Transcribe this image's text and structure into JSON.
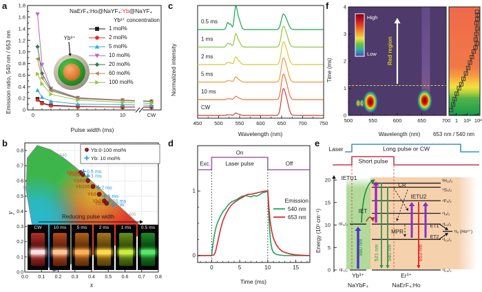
{
  "panels": {
    "a": {
      "label": "a",
      "title_pre": "NaErF₄:Ho@NaYF₄:",
      "title_accent": "Yb",
      "title_post": "@NaYF₄",
      "accent_color": "#e8312a",
      "ylabel": "Emission ratio, 540 nm / 653 nm",
      "xlabel": "Pulse width (ms)",
      "legend_title": "Yb³⁺ concentration",
      "inset_label": "Yb³⁺"
    },
    "b": {
      "label": "b",
      "xlabel": "x",
      "ylabel": "y",
      "arrow_text": "Reducing pulse width"
    },
    "c": {
      "label": "c",
      "ylabel": "Normalized intensity",
      "xlabel": "Wavelength (nm)"
    },
    "d": {
      "label": "d",
      "xlabel": "Time (ms)",
      "pulse_labels": {
        "exc": "Exc.",
        "on": "On",
        "pulse": "Laser pulse",
        "off": "Off"
      },
      "legend_title": "Emission",
      "pulse_color": "#9e5fb0"
    },
    "e": {
      "label": "e",
      "laser_label": "Laser",
      "pulse_long": {
        "text": "Long pulse or CW",
        "color": "#3f8fc4"
      },
      "pulse_short": {
        "text": "Short pulse",
        "color": "#c23a50"
      },
      "ylabel": "Energy (10³ cm⁻¹)",
      "yticks": [
        0,
        5,
        10,
        15,
        20
      ],
      "yb": {
        "ion": "Yb³⁺",
        "host": "NaYbF₄",
        "levels": [
          {
            "term": "²F₇/₂",
            "E": 0
          },
          {
            "term": "²F₅/₂",
            "E": 10.2
          }
        ]
      },
      "er": {
        "ion": "Er³⁺",
        "host": "NaErF₄:Ho",
        "levels": [
          {
            "term": "⁴I₁₅/₂",
            "E": 0
          },
          {
            "term": "⁴I₁₃/₂",
            "E": 6.8
          },
          {
            "term": "⁴I₁₁/₂",
            "E": 10.2
          },
          {
            "term": "⁴I₉/₂",
            "E": 12.6
          },
          {
            "term": "⁴F₉/₂",
            "E": 15.4
          },
          {
            "term": "⁴S₃/₂",
            "E": 18.4
          },
          {
            "term": "²H₁₁/₂",
            "E": 19.3
          }
        ]
      },
      "ho": {
        "term": "⁵I₆ (Ho³⁺)",
        "E": 8.6
      },
      "processes": {
        "ietu1": "IETU1",
        "iet": "IET",
        "cr": "CR",
        "ietu2": "IETU2",
        "mpr": "MPR",
        "et1": "ET1",
        "et2": "ET2"
      },
      "photons": [
        {
          "text": "980 nm",
          "color": "#2e8b2e"
        },
        {
          "text": "521 nm",
          "color": "#1fa04a"
        },
        {
          "text": "540 nm",
          "color": "#1fa04a"
        },
        {
          "text": "653 nm",
          "color": "#e02020"
        }
      ]
    },
    "f": {
      "label": "f",
      "ylabel": "Time (ms)",
      "xlabel_left": "Wavelength (nm)",
      "xlabel_right": "653 nm / 540 nm",
      "colorbar_high": "High",
      "colorbar_low": "Low",
      "annotation": "Red region",
      "bg_color": "#4e3a6b"
    }
  },
  "chart_data": [
    {
      "panel": "a",
      "type": "line",
      "title": "NaErF₄:Ho@NaYF₄:Yb@NaYF₄",
      "xlabel": "Pulse width (ms)",
      "ylabel": "Emission ratio, 540 nm / 653 nm",
      "x_categories": [
        0.5,
        1,
        2,
        5,
        10,
        "CW"
      ],
      "xticks": [
        0,
        5,
        10
      ],
      "cw_tick": "CW",
      "ylim": [
        0,
        1.8
      ],
      "ytick_step": 0.2,
      "series": [
        {
          "name": "1 mol%",
          "color": "#1a1a1a",
          "marker": "square",
          "values": [
            0.19,
            0.12,
            0.08,
            0.06,
            0.05,
            0.05
          ]
        },
        {
          "name": "2 mol%",
          "color": "#e0312a",
          "marker": "circle",
          "values": [
            0.17,
            0.11,
            0.07,
            0.055,
            0.05,
            0.045
          ]
        },
        {
          "name": "5 mol%",
          "color": "#2fa8e0",
          "marker": "triangle-up",
          "values": [
            0.34,
            0.22,
            0.15,
            0.1,
            0.09,
            0.08
          ]
        },
        {
          "name": "10 mol%",
          "color": "#b765bd",
          "marker": "triangle-down",
          "values": [
            1.65,
            0.78,
            0.37,
            0.21,
            0.17,
            0.15
          ]
        },
        {
          "name": "20 mol%",
          "color": "#2e7d3e",
          "marker": "diamond",
          "values": [
            1.09,
            0.63,
            0.35,
            0.2,
            0.165,
            0.15
          ]
        },
        {
          "name": "60 mol%",
          "color": "#b5895a",
          "marker": "triangle-left",
          "values": [
            0.88,
            0.55,
            0.33,
            0.195,
            0.16,
            0.14
          ]
        },
        {
          "name": "100 mol%",
          "color": "#95c23e",
          "marker": "triangle-right",
          "values": [
            0.62,
            0.45,
            0.27,
            0.17,
            0.13,
            0.11
          ]
        }
      ]
    },
    {
      "panel": "b",
      "type": "scatter",
      "xlabel": "x",
      "ylabel": "y",
      "xlim": [
        0,
        0.8
      ],
      "ylim": [
        0,
        0.85
      ],
      "tick_step": 0.1,
      "locus_labels": [
        {
          "text": "500",
          "x": 0.01,
          "y": 0.545
        },
        {
          "text": "540",
          "x": 0.23,
          "y": 0.76
        },
        {
          "text": "600",
          "x": 0.645,
          "y": 0.37
        }
      ],
      "series": [
        {
          "name": "Yb:0-100 mol%",
          "color": "#8b1a1a",
          "marker": "circle",
          "label_color": "#c2571c",
          "points": [
            {
              "label": "Yb10",
              "x": 0.335,
              "y": 0.655
            },
            {
              "label": "Yb20",
              "x": 0.348,
              "y": 0.642
            },
            {
              "label": "Yb60",
              "x": 0.378,
              "y": 0.602
            },
            {
              "label": "Yb100",
              "x": 0.408,
              "y": 0.563
            },
            {
              "label": "Yb5",
              "x": 0.446,
              "y": 0.512
            },
            {
              "label": "Yb2",
              "x": 0.476,
              "y": 0.468
            },
            {
              "label": "Yb1",
              "x": 0.49,
              "y": 0.452
            }
          ]
        },
        {
          "name": "Yb: 10 mol%",
          "color": "#2f96d8",
          "marker": "plus",
          "label_color": "#2f96d8",
          "points": [
            {
              "label": "0.5 ms",
              "x": 0.352,
              "y": 0.662
            },
            {
              "label": "1 ms",
              "x": 0.378,
              "y": 0.632
            },
            {
              "label": "2 ms",
              "x": 0.44,
              "y": 0.556
            },
            {
              "label": "5 ms",
              "x": 0.478,
              "y": 0.5
            },
            {
              "label": "10 ms",
              "x": 0.508,
              "y": 0.468
            },
            {
              "label": "CW",
              "x": 0.528,
              "y": 0.443
            }
          ]
        }
      ],
      "arrow_text": "Reducing pulse width",
      "photos": [
        {
          "label": "CW",
          "body": "#b03028",
          "deep": "#5a0d0d",
          "band": "#ffe2e2"
        },
        {
          "label": "10 ms",
          "body": "#b44a20",
          "deep": "#5c1d06",
          "band": "#ffc898"
        },
        {
          "label": "5 ms",
          "body": "#b06018",
          "deep": "#5a2c06",
          "band": "#ffb058"
        },
        {
          "label": "2 ms",
          "body": "#a87818",
          "deep": "#523a06",
          "band": "#ffd850"
        },
        {
          "label": "1 ms",
          "body": "#6a9018",
          "deep": "#2e4606",
          "band": "#c8ee40"
        },
        {
          "label": "0.5 ms",
          "body": "#1f8a28",
          "deep": "#07400e",
          "band": "#55e868"
        }
      ]
    },
    {
      "panel": "c",
      "type": "line-stack",
      "xlabel": "Wavelength (nm)",
      "ylabel": "Normalized intensity",
      "xlim": [
        450,
        750
      ],
      "xticks": [
        450,
        500,
        550,
        600,
        650,
        700,
        750
      ],
      "green_peaks": [
        [
          521.5,
          2.8,
          0.33
        ],
        [
          528.5,
          2.8,
          0.25
        ],
        [
          540.5,
          3.2,
          1.0
        ],
        [
          547.5,
          4.5,
          0.52
        ]
      ],
      "red_peaks": [
        [
          653,
          4.5,
          1.0
        ],
        [
          661,
          5.5,
          0.72
        ]
      ],
      "series": [
        {
          "name": "0.5 ms",
          "color": "#18a24f",
          "green": 1.0,
          "red": 0.58
        },
        {
          "name": "1 ms",
          "color": "#8cc63f",
          "green": 0.56,
          "red": 0.78
        },
        {
          "name": "2 ms",
          "color": "#d8c838",
          "green": 0.32,
          "red": 0.85
        },
        {
          "name": "5 ms",
          "color": "#f09a3c",
          "green": 0.22,
          "red": 0.9
        },
        {
          "name": "10 ms",
          "color": "#ee7030",
          "green": 0.14,
          "red": 0.95
        },
        {
          "name": "CW",
          "color": "#d43a32",
          "green": 0.1,
          "red": 1.0
        }
      ]
    },
    {
      "panel": "d",
      "type": "line",
      "xlabel": "Time (ms)",
      "xlim": [
        -2.5,
        17.5
      ],
      "xticks": [
        0,
        5,
        10,
        15
      ],
      "yticks": [
        0,
        1
      ],
      "pulse_on_start": 0,
      "pulse_on_end": 10,
      "series": [
        {
          "name": "540 nm",
          "color": "#17a45c",
          "points": [
            [
              -2.5,
              0
            ],
            [
              -1,
              0
            ],
            [
              0,
              0
            ],
            [
              0.15,
              0.12
            ],
            [
              0.3,
              0.22
            ],
            [
              0.5,
              0.33
            ],
            [
              0.75,
              0.43
            ],
            [
              1,
              0.5
            ],
            [
              1.5,
              0.6
            ],
            [
              2,
              0.68
            ],
            [
              2.5,
              0.73
            ],
            [
              3,
              0.79
            ],
            [
              3.5,
              0.83
            ],
            [
              4,
              0.85
            ],
            [
              4.5,
              0.87
            ],
            [
              5,
              0.9
            ],
            [
              5.5,
              0.92
            ],
            [
              6,
              0.93
            ],
            [
              6.5,
              0.92
            ],
            [
              7,
              0.91
            ],
            [
              7.5,
              0.93
            ],
            [
              8,
              0.92
            ],
            [
              8.5,
              0.94
            ],
            [
              9,
              0.97
            ],
            [
              9.5,
              0.98
            ],
            [
              10,
              1
            ],
            [
              10.15,
              0.7
            ],
            [
              10.3,
              0.45
            ],
            [
              10.5,
              0.22
            ],
            [
              10.75,
              0.1
            ],
            [
              11,
              0.05
            ],
            [
              11.5,
              0.02
            ],
            [
              12,
              0.01
            ],
            [
              13,
              0
            ],
            [
              17.5,
              0
            ]
          ]
        },
        {
          "name": "653 nm",
          "color": "#d8262c",
          "points": [
            [
              -2.5,
              0
            ],
            [
              0,
              0
            ],
            [
              0.4,
              0.01
            ],
            [
              0.6,
              0.04
            ],
            [
              0.8,
              0.1
            ],
            [
              1,
              0.18
            ],
            [
              1.25,
              0.28
            ],
            [
              1.5,
              0.38
            ],
            [
              1.75,
              0.46
            ],
            [
              2,
              0.54
            ],
            [
              2.5,
              0.64
            ],
            [
              3,
              0.72
            ],
            [
              3.5,
              0.78
            ],
            [
              4,
              0.82
            ],
            [
              4.5,
              0.85
            ],
            [
              5,
              0.88
            ],
            [
              5.5,
              0.9
            ],
            [
              6,
              0.93
            ],
            [
              6.5,
              0.95
            ],
            [
              7,
              0.95
            ],
            [
              7.5,
              0.96
            ],
            [
              8,
              0.97
            ],
            [
              8.5,
              0.98
            ],
            [
              9,
              0.99
            ],
            [
              9.5,
              1
            ],
            [
              10,
              1
            ],
            [
              10.2,
              0.75
            ],
            [
              10.4,
              0.55
            ],
            [
              10.7,
              0.38
            ],
            [
              11,
              0.27
            ],
            [
              11.5,
              0.17
            ],
            [
              12,
              0.11
            ],
            [
              12.5,
              0.07
            ],
            [
              13,
              0.05
            ],
            [
              14,
              0.025
            ],
            [
              15,
              0.012
            ],
            [
              16,
              0.006
            ],
            [
              17.5,
              0
            ]
          ]
        }
      ]
    },
    {
      "panel": "e",
      "type": "energy-diagram",
      "yb_levels": [
        {
          "term": "²F₇/₂",
          "E": 0
        },
        {
          "term": "²F₅/₂",
          "E": 10.2
        }
      ],
      "er_levels": [
        {
          "term": "⁴I₁₅/₂",
          "E": 0
        },
        {
          "term": "⁴I₁₃/₂",
          "E": 6.8
        },
        {
          "term": "⁴I₁₁/₂",
          "E": 10.2
        },
        {
          "term": "⁴I₉/₂",
          "E": 12.6
        },
        {
          "term": "⁴F₉/₂",
          "E": 15.4
        },
        {
          "term": "⁴S₃/₂",
          "E": 18.4
        },
        {
          "term": "²H₁₁/₂",
          "E": 19.3
        }
      ],
      "ho_level_E": 8.6,
      "transitions_nm": [
        980,
        521,
        540,
        653
      ]
    },
    {
      "panel": "f",
      "type": "heatmap+line",
      "heatmap": {
        "xlim": [
          500,
          700
        ],
        "xticks": [
          500,
          550,
          600,
          650,
          700
        ],
        "ylim": [
          0,
          4
        ],
        "yticks": [
          0,
          1,
          2,
          3,
          4
        ],
        "dashed_line_t": 1.1,
        "hotspots": [
          {
            "wl": 520,
            "t": 0.45,
            "size": "small"
          },
          {
            "wl": 528,
            "t": 0.45,
            "size": "small"
          },
          {
            "wl": 545,
            "t": 0.5,
            "size": "large"
          },
          {
            "wl": 656,
            "t": 0.55,
            "size": "large"
          }
        ]
      },
      "ratio_plot": {
        "xscale": "log",
        "xticks": [
          {
            "v": 1,
            "label": "1"
          },
          {
            "v": 10,
            "label": "10¹"
          },
          {
            "v": 100,
            "label": "10²"
          }
        ],
        "points": [
          [
            0.2,
            0.32
          ],
          [
            0.4,
            0.5
          ],
          [
            0.6,
            0.68
          ],
          [
            0.8,
            1.05
          ],
          [
            1.0,
            1.7
          ],
          [
            1.15,
            2.8
          ],
          [
            1.35,
            4.5
          ],
          [
            1.55,
            7.5
          ],
          [
            1.75,
            12
          ],
          [
            1.95,
            18
          ],
          [
            2.15,
            27
          ],
          [
            2.35,
            40
          ],
          [
            2.5,
            58
          ],
          [
            2.65,
            78
          ],
          [
            2.8,
            62
          ],
          [
            3.0,
            70
          ],
          [
            3.2,
            82
          ],
          [
            3.4,
            72
          ],
          [
            3.55,
            85
          ],
          [
            3.7,
            92
          ],
          [
            3.82,
            80
          ]
        ]
      }
    }
  ]
}
